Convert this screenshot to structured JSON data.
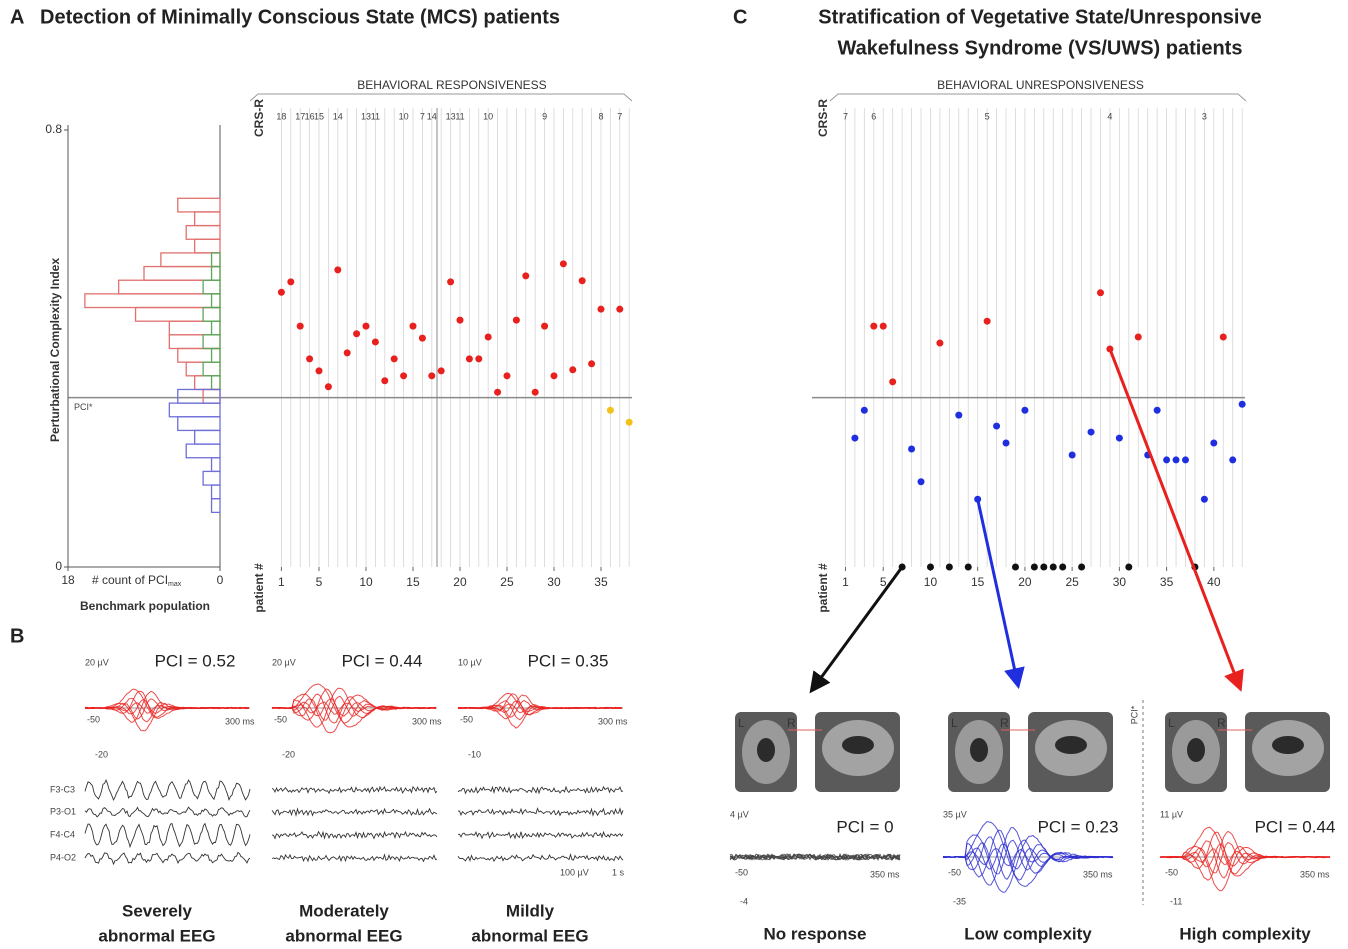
{
  "panel_a": {
    "letter": "A",
    "title": "Detection of Minimally Conscious State (MCS) patients",
    "top_label": "BEHAVIORAL RESPONSIVENESS",
    "crs_label": "CRS-R",
    "crs_scores": {
      "patient": [
        1,
        3,
        4,
        5,
        7,
        10,
        11,
        14,
        16,
        17,
        19,
        20,
        23,
        29,
        35,
        37
      ],
      "score": [
        18,
        17,
        16,
        15,
        14,
        13,
        11,
        10,
        7,
        14,
        13,
        11,
        10,
        9,
        8,
        7
      ]
    },
    "y_label": "Perturbational Complexity Index",
    "ylim": [
      0,
      0.8
    ],
    "yticks": [
      0,
      0.8
    ],
    "threshold_label": "PCI*",
    "threshold": 0.31,
    "x_label": "patient #",
    "xlim": [
      0,
      38.3
    ],
    "xticks": [
      1,
      5,
      10,
      15,
      20,
      25,
      30,
      35
    ],
    "points": {
      "color": "#e8201e",
      "x": [
        1,
        2,
        3,
        4,
        5,
        6,
        7,
        8,
        9,
        10,
        11,
        12,
        13,
        14,
        15,
        16,
        17,
        18,
        19,
        20,
        21,
        22,
        23,
        24,
        25,
        26,
        27,
        28,
        29,
        30,
        31,
        32,
        33,
        34,
        35,
        37
      ],
      "y": [
        0.503,
        0.522,
        0.441,
        0.381,
        0.359,
        0.33,
        0.544,
        0.392,
        0.427,
        0.441,
        0.412,
        0.341,
        0.381,
        0.35,
        0.441,
        0.419,
        0.35,
        0.359,
        0.522,
        0.452,
        0.381,
        0.381,
        0.421,
        0.32,
        0.35,
        0.452,
        0.533,
        0.32,
        0.441,
        0.35,
        0.555,
        0.361,
        0.524,
        0.372,
        0.472,
        0.472
      ]
    },
    "below_points": {
      "color": "#f2c21a",
      "x": [
        36,
        38
      ],
      "y": [
        0.287,
        0.265
      ]
    },
    "histogram": {
      "bins": [
        0.1,
        0.125,
        0.15,
        0.175,
        0.2,
        0.225,
        0.25,
        0.275,
        0.3,
        0.325,
        0.35,
        0.375,
        0.4,
        0.425,
        0.45,
        0.475,
        0.5,
        0.525,
        0.55,
        0.575,
        0.6,
        0.625,
        0.65,
        0.675
      ],
      "series": [
        {
          "color": "#e0716f",
          "values": [
            0,
            0,
            0,
            0,
            0,
            0,
            0,
            0,
            2,
            3,
            4,
            5,
            6,
            6,
            10,
            16,
            12,
            9,
            7,
            3,
            4,
            3,
            5
          ]
        },
        {
          "color": "#5aa85a",
          "values": [
            0,
            0,
            0,
            0,
            0,
            0,
            0,
            0,
            0,
            1,
            2,
            1,
            2,
            1,
            2,
            1,
            2,
            1,
            1,
            0,
            0,
            0,
            0
          ]
        },
        {
          "color": "#6f6fd8",
          "values": [
            1,
            1,
            2,
            1,
            4,
            3,
            5,
            6,
            5,
            0,
            0,
            0,
            0,
            0,
            0,
            0,
            0,
            0,
            0,
            0,
            0,
            0,
            0
          ]
        }
      ],
      "xlim": [
        18,
        0
      ],
      "xticks": [
        18,
        0
      ],
      "x_label": "# count of PCI",
      "x_label_sub": "max",
      "caption": "Benchmark population"
    }
  },
  "panel_b": {
    "letter": "B",
    "channels": [
      "F3-C3",
      "P3-O1",
      "F4-C4",
      "P4-O2"
    ],
    "scale": "100 µV",
    "time": "1 s",
    "examples": [
      {
        "pci": "PCI = 0.52",
        "amp_top": "20 µV",
        "amp_bottom": "-20",
        "t_start": "-50",
        "t_end": "300 ms",
        "caption": [
          "Severely",
          "abnormal EEG"
        ]
      },
      {
        "pci": "PCI = 0.44",
        "amp_top": "20 µV",
        "amp_bottom": "-20",
        "t_start": "-50",
        "t_end": "300 ms",
        "caption": [
          "Moderately",
          "abnormal EEG"
        ]
      },
      {
        "pci": "PCI = 0.35",
        "amp_top": "10 µV",
        "amp_bottom": "-10",
        "t_start": "-50",
        "t_end": "300 ms",
        "caption": [
          "Mildly",
          "abnormal EEG"
        ]
      }
    ]
  },
  "panel_c": {
    "letter": "C",
    "title_lines": [
      "Stratification of Vegetative State/Unresponsive",
      "Wakefulness Syndrome (VS/UWS) patients"
    ],
    "top_label": "BEHAVIORAL UNRESPONSIVENESS",
    "crs_label": "CRS-R",
    "crs_scores": {
      "patient": [
        1,
        4,
        16,
        29,
        39
      ],
      "score": [
        7,
        6,
        5,
        4,
        3
      ]
    },
    "x_label": "patient #",
    "xlim": [
      0,
      43.3
    ],
    "xticks": [
      1,
      5,
      10,
      15,
      20,
      25,
      30,
      35,
      40
    ],
    "ylim": [
      0,
      0.8
    ],
    "threshold": 0.31,
    "threshold_label": "PCI*",
    "groups": [
      {
        "color": "#e8201e",
        "x": [
          4,
          5,
          6,
          11,
          16,
          28,
          29,
          32,
          41
        ],
        "y": [
          0.441,
          0.441,
          0.339,
          0.41,
          0.45,
          0.502,
          0.399,
          0.421,
          0.421
        ]
      },
      {
        "color": "#1f2fe0",
        "x": [
          2,
          3,
          8,
          9,
          13,
          15,
          17,
          18,
          20,
          25,
          27,
          30,
          33,
          34,
          35,
          36,
          37,
          39,
          40,
          42,
          43
        ],
        "y": [
          0.236,
          0.287,
          0.216,
          0.156,
          0.278,
          0.124,
          0.258,
          0.227,
          0.287,
          0.205,
          0.247,
          0.236,
          0.205,
          0.287,
          0.196,
          0.196,
          0.196,
          0.124,
          0.227,
          0.196,
          0.298
        ]
      },
      {
        "color": "#111111",
        "x": [
          7,
          10,
          12,
          14,
          19,
          21,
          22,
          23,
          24,
          26,
          31,
          38
        ],
        "y": [
          0,
          0,
          0,
          0,
          0,
          0,
          0,
          0,
          0,
          0,
          0,
          0
        ]
      }
    ],
    "brain_l": "L",
    "brain_r": "R",
    "examples": [
      {
        "pci": "PCI = 0",
        "amp_top": "4 µV",
        "amp_bottom": "-4",
        "t_start": "-50",
        "t_end": "350 ms",
        "caption": "No response"
      },
      {
        "pci": "PCI = 0.23",
        "amp_top": "35 µV",
        "amp_bottom": "-35",
        "t_start": "-50",
        "t_end": "350 ms",
        "caption": "Low complexity"
      },
      {
        "pci": "PCI = 0.44",
        "amp_top": "11 µV",
        "amp_bottom": "-11",
        "t_start": "-50",
        "t_end": "350 ms",
        "caption": "High complexity"
      }
    ]
  }
}
